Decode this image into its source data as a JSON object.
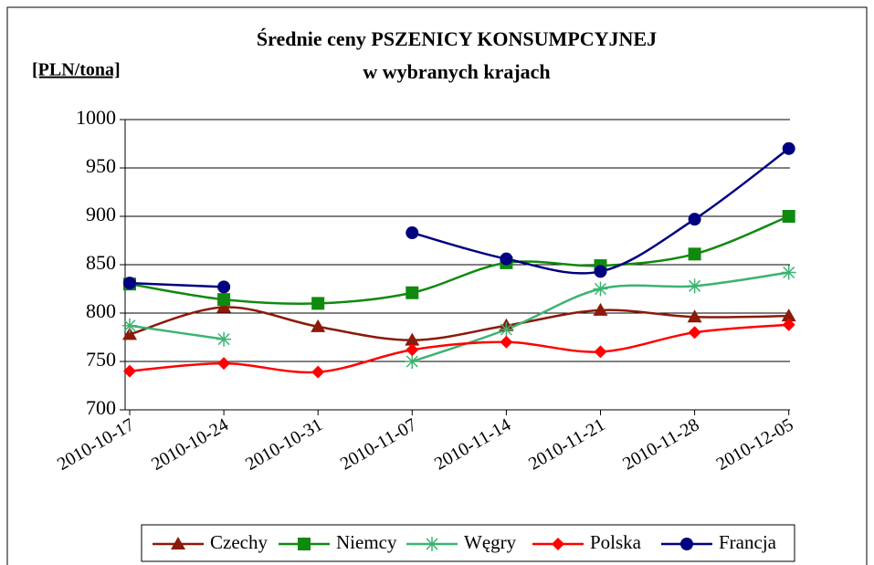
{
  "chart_data": {
    "type": "line",
    "title": "Średnie ceny PSZENICY KONSUMPCYJNEJ",
    "subtitle": "w wybranych krajach",
    "y_label": "[PLN/tona]",
    "categories": [
      "2010-10-17",
      "2010-10-24",
      "2010-10-31",
      "2010-11-07",
      "2010-11-14",
      "2010-11-21",
      "2010-11-28",
      "2010-12-05"
    ],
    "series": [
      {
        "name": "Czechy",
        "color": "#8b1a0a",
        "marker": "triangle",
        "values": [
          778,
          806,
          786,
          772,
          787,
          803,
          796,
          797
        ]
      },
      {
        "name": "Niemcy",
        "color": "#0f8a0f",
        "marker": "square",
        "values": [
          830,
          814,
          810,
          821,
          852,
          849,
          861,
          900
        ]
      },
      {
        "name": "Węgry",
        "color": "#3cb371",
        "marker": "star",
        "values": [
          787,
          773,
          null,
          750,
          783,
          825,
          828,
          842
        ]
      },
      {
        "name": "Polska",
        "color": "#ff0000",
        "marker": "diamond",
        "values": [
          740,
          748,
          739,
          762,
          770,
          760,
          780,
          788
        ]
      },
      {
        "name": "Francja",
        "color": "#000080",
        "marker": "circle",
        "values": [
          831,
          827,
          null,
          883,
          856,
          843,
          897,
          970
        ]
      }
    ],
    "ylim": [
      700,
      1000
    ],
    "yticks": [
      700,
      750,
      800,
      850,
      900,
      950,
      1000
    ],
    "grid": true,
    "legend": "bottom"
  }
}
